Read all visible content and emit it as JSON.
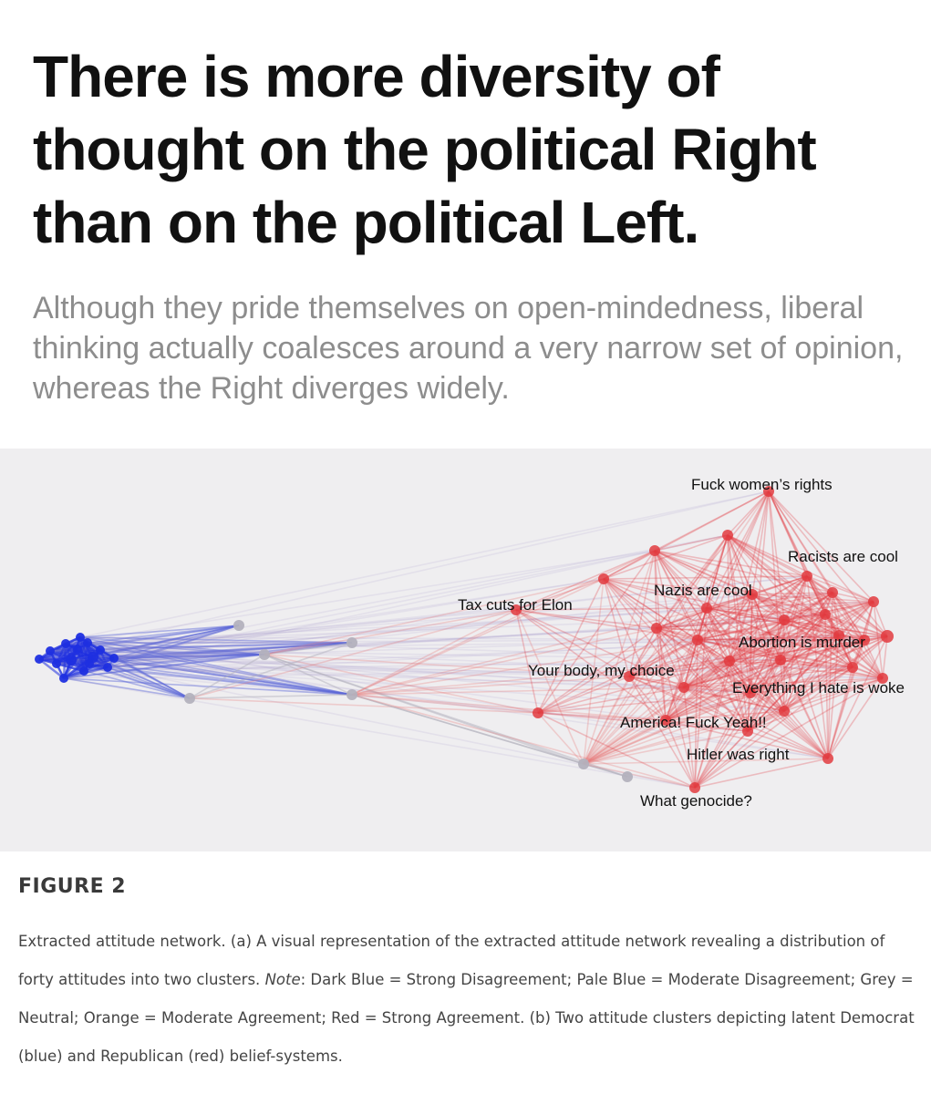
{
  "headline": "There is more diversity of thought on the political Right than on the political Left.",
  "subhead": "Although they pride themselves on open-mindedness, liberal thinking actually coalesces around a very narrow set of opinion, whereas the Right diverges widely.",
  "network": {
    "colors": {
      "panel_background": "#efeef0",
      "strong_blue": "#1f2fe0",
      "moderate_blue": "#5a66d8",
      "neutral_grey": "#b3b1bd",
      "strong_red": "#e23b40",
      "moderate_red": "#e8797c"
    },
    "labels": [
      "Fuck women’s rights",
      "Racists are cool",
      "Nazis are cool",
      "Tax cuts for Elon",
      "Abortion is murder",
      "Your body, my choice",
      "Everything I hate is woke",
      "America! Fuck Yeah!!",
      "Hitler was right",
      "What genocide?"
    ]
  },
  "figure": {
    "title": "FIGURE 2",
    "caption_part1": "Extracted attitude network. (a) A visual representation of the extracted attitude network revealing a distribution of forty attitudes into two clusters. ",
    "caption_note": "Note",
    "caption_part2": ": Dark Blue = Strong Disagreement; Pale Blue = Moderate Disagreement; Grey = Neutral; Orange = Moderate Agreement; Red = Strong Agreement. (b) Two attitude clusters depicting latent Democrat (blue) and Republican (red) belief-systems."
  }
}
